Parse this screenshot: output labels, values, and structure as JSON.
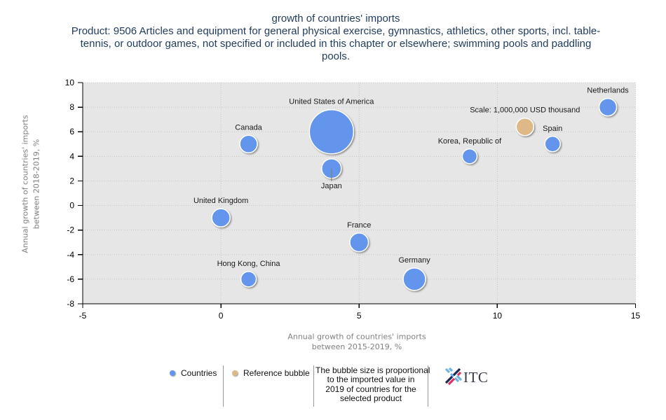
{
  "chart_data": {
    "type": "scatter",
    "subtype": "bubble",
    "title": "growth of countries' imports",
    "subtitle_lines": [
      "Product: 9506 Articles and equipment for general physical exercise, gymnastics, athletics, other sports, incl. table-",
      "tennis, or outdoor games, not specified or included in this chapter or elsewhere; swimming pools and paddling",
      "pools."
    ],
    "xlabel": "Annual growth of countries' imports between 2015-2019, %",
    "xlabel_lines": [
      "Annual growth of countries' imports",
      "between 2015-2019, %"
    ],
    "ylabel": "Annual growth of countries' imports between 2018-2019, %",
    "ylabel_lines": [
      "Annual growth of countries' imports",
      "between 2018-2019, %"
    ],
    "xlim": [
      -5,
      15
    ],
    "ylim": [
      -8,
      10
    ],
    "xticks": [
      -5,
      0,
      5,
      10,
      15
    ],
    "yticks": [
      -8,
      -6,
      -4,
      -2,
      0,
      2,
      4,
      6,
      8,
      10
    ],
    "grid": true,
    "size_unit": "USD thousand",
    "size_note": "estimated from bubble area relative to reference bubble",
    "series": [
      {
        "name": "Countries",
        "color": "#6495ED",
        "points": [
          {
            "label": "United States of America",
            "x": 4,
            "y": 6,
            "size": 6350000,
            "label_position": "above"
          },
          {
            "label": "Canada",
            "x": 1,
            "y": 5,
            "size": 1000000,
            "label_position": "above"
          },
          {
            "label": "Japan",
            "x": 4,
            "y": 3,
            "size": 1250000,
            "label_position": "below"
          },
          {
            "label": "United Kingdom",
            "x": 0,
            "y": -1,
            "size": 1080000,
            "label_position": "above"
          },
          {
            "label": "France",
            "x": 5,
            "y": -3,
            "size": 1130000,
            "label_position": "above"
          },
          {
            "label": "Hong Kong, China",
            "x": 1,
            "y": -6,
            "size": 770000,
            "label_position": "above"
          },
          {
            "label": "Germany",
            "x": 7,
            "y": -6,
            "size": 1640000,
            "label_position": "above"
          },
          {
            "label": "Korea, Republic of",
            "x": 9,
            "y": 4,
            "size": 710000,
            "label_position": "above"
          },
          {
            "label": "Spain",
            "x": 12,
            "y": 5,
            "size": 770000,
            "label_position": "above"
          },
          {
            "label": "Netherlands",
            "x": 14,
            "y": 8,
            "size": 1000000,
            "label_position": "above"
          }
        ]
      },
      {
        "name": "Reference bubble",
        "color": "#DEB887",
        "points": [
          {
            "label": "Scale: 1,000,000 USD thousand",
            "x": 11,
            "y": 6.4,
            "size": 1000000,
            "label_position": "above"
          }
        ]
      }
    ],
    "reference_size": 1000000,
    "legend": {
      "placement": "bottom",
      "items": [
        {
          "label": "Countries",
          "color": "#6495ED"
        },
        {
          "label": "Reference bubble",
          "color": "#DEB887"
        }
      ],
      "note_lines": [
        "The bubble size is proportional",
        "to the imported value in",
        "2019 of countries for the",
        "selected product"
      ]
    }
  },
  "logo": {
    "text": "ITC",
    "icon": "itc-logo-icon"
  }
}
